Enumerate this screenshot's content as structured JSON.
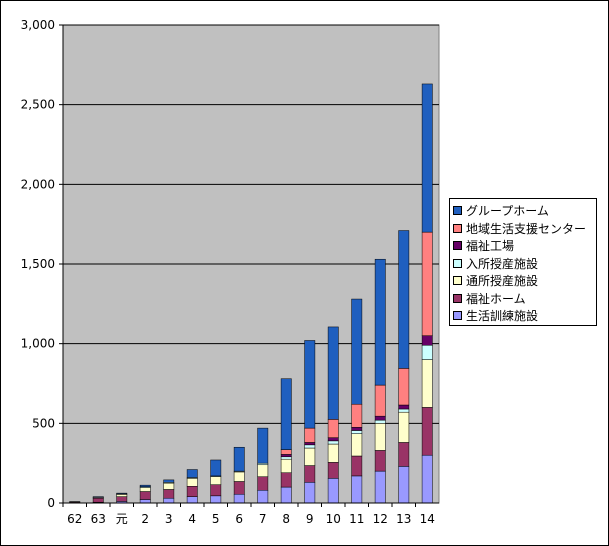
{
  "chart_data": {
    "type": "bar",
    "stacked": true,
    "categories": [
      "62",
      "63",
      "元",
      "2",
      "3",
      "4",
      "5",
      "6",
      "7",
      "8",
      "9",
      "10",
      "11",
      "12",
      "13",
      "14"
    ],
    "ylim": [
      0,
      3000
    ],
    "yticks": [
      0,
      500,
      1000,
      1500,
      2000,
      2500,
      3000
    ],
    "ytick_labels": [
      "0",
      "500",
      "1,000",
      "1,500",
      "2,000",
      "2,500",
      "3,000"
    ],
    "grid": true,
    "legend_position": "right",
    "plot_background": "#c0c0c0",
    "series": [
      {
        "name": "生活訓練施設",
        "color": "#9999ff",
        "values": [
          2,
          5,
          10,
          22,
          30,
          40,
          45,
          55,
          80,
          100,
          130,
          155,
          170,
          200,
          230,
          300
        ]
      },
      {
        "name": "福祉ホーム",
        "color": "#993366",
        "values": [
          5,
          25,
          30,
          50,
          55,
          65,
          70,
          80,
          85,
          90,
          105,
          100,
          125,
          130,
          150,
          300
        ]
      },
      {
        "name": "通所授産施設",
        "color": "#ffffcc",
        "values": [
          2,
          5,
          15,
          25,
          40,
          50,
          50,
          60,
          75,
          85,
          110,
          115,
          140,
          170,
          190,
          300
        ]
      },
      {
        "name": "入所授産施設",
        "color": "#ccffff",
        "values": [
          0,
          0,
          2,
          5,
          5,
          5,
          5,
          5,
          10,
          15,
          20,
          20,
          20,
          20,
          20,
          90
        ]
      },
      {
        "name": "福祉工場",
        "color": "#660066",
        "values": [
          0,
          0,
          0,
          0,
          0,
          0,
          0,
          0,
          0,
          15,
          15,
          20,
          20,
          25,
          25,
          60
        ]
      },
      {
        "name": "地域生活支援センター",
        "color": "#ff8080",
        "values": [
          0,
          0,
          0,
          0,
          0,
          0,
          0,
          0,
          0,
          30,
          90,
          115,
          145,
          195,
          230,
          650
        ]
      },
      {
        "name": "グループホーム",
        "color": "#1f5fbf",
        "values": [
          0,
          5,
          5,
          10,
          15,
          50,
          100,
          150,
          220,
          445,
          550,
          580,
          660,
          790,
          865,
          930
        ]
      }
    ]
  }
}
